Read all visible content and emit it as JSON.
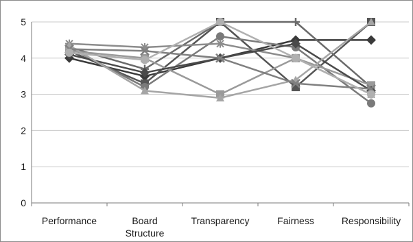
{
  "chart_data": {
    "type": "line",
    "title": "",
    "xlabel": "",
    "ylabel": "",
    "categories": [
      "Performance",
      "Board\nStructure",
      "Transparency",
      "Fairness",
      "Responsibility"
    ],
    "ylim": [
      0,
      5
    ],
    "yticks": [
      0,
      1,
      2,
      3,
      4,
      5
    ],
    "grid": true,
    "legend": "none",
    "series": [
      {
        "values": [
          4.0,
          3.5,
          4.0,
          4.5,
          4.5
        ],
        "marker": "diamond",
        "color": "#3a3a3a"
      },
      {
        "values": [
          4.2,
          3.3,
          5.0,
          3.2,
          5.0
        ],
        "marker": "square",
        "color": "#555555"
      },
      {
        "values": [
          4.3,
          3.7,
          5.0,
          5.0,
          3.2
        ],
        "marker": "plus",
        "color": "#6a6a6a"
      },
      {
        "values": [
          4.3,
          3.2,
          4.6,
          4.3,
          2.75
        ],
        "marker": "circle",
        "color": "#7a7a7a"
      },
      {
        "values": [
          4.4,
          4.3,
          4.4,
          4.0,
          3.0
        ],
        "marker": "star",
        "color": "#8c8c8c"
      },
      {
        "values": [
          4.2,
          4.0,
          3.0,
          4.0,
          3.25
        ],
        "marker": "square",
        "color": "#9a9a9a"
      },
      {
        "values": [
          4.1,
          3.6,
          4.0,
          4.4,
          3.1
        ],
        "marker": "diamond",
        "color": "#4a4a4a"
      },
      {
        "values": [
          4.35,
          3.1,
          2.9,
          3.4,
          5.0
        ],
        "marker": "triangle",
        "color": "#a5a5a5"
      },
      {
        "values": [
          4.25,
          4.2,
          4.0,
          3.3,
          3.15
        ],
        "marker": "x",
        "color": "#808080"
      },
      {
        "values": [
          4.15,
          3.95,
          5.0,
          4.0,
          3.0
        ],
        "marker": "circle",
        "color": "#b0b0b0"
      }
    ]
  }
}
